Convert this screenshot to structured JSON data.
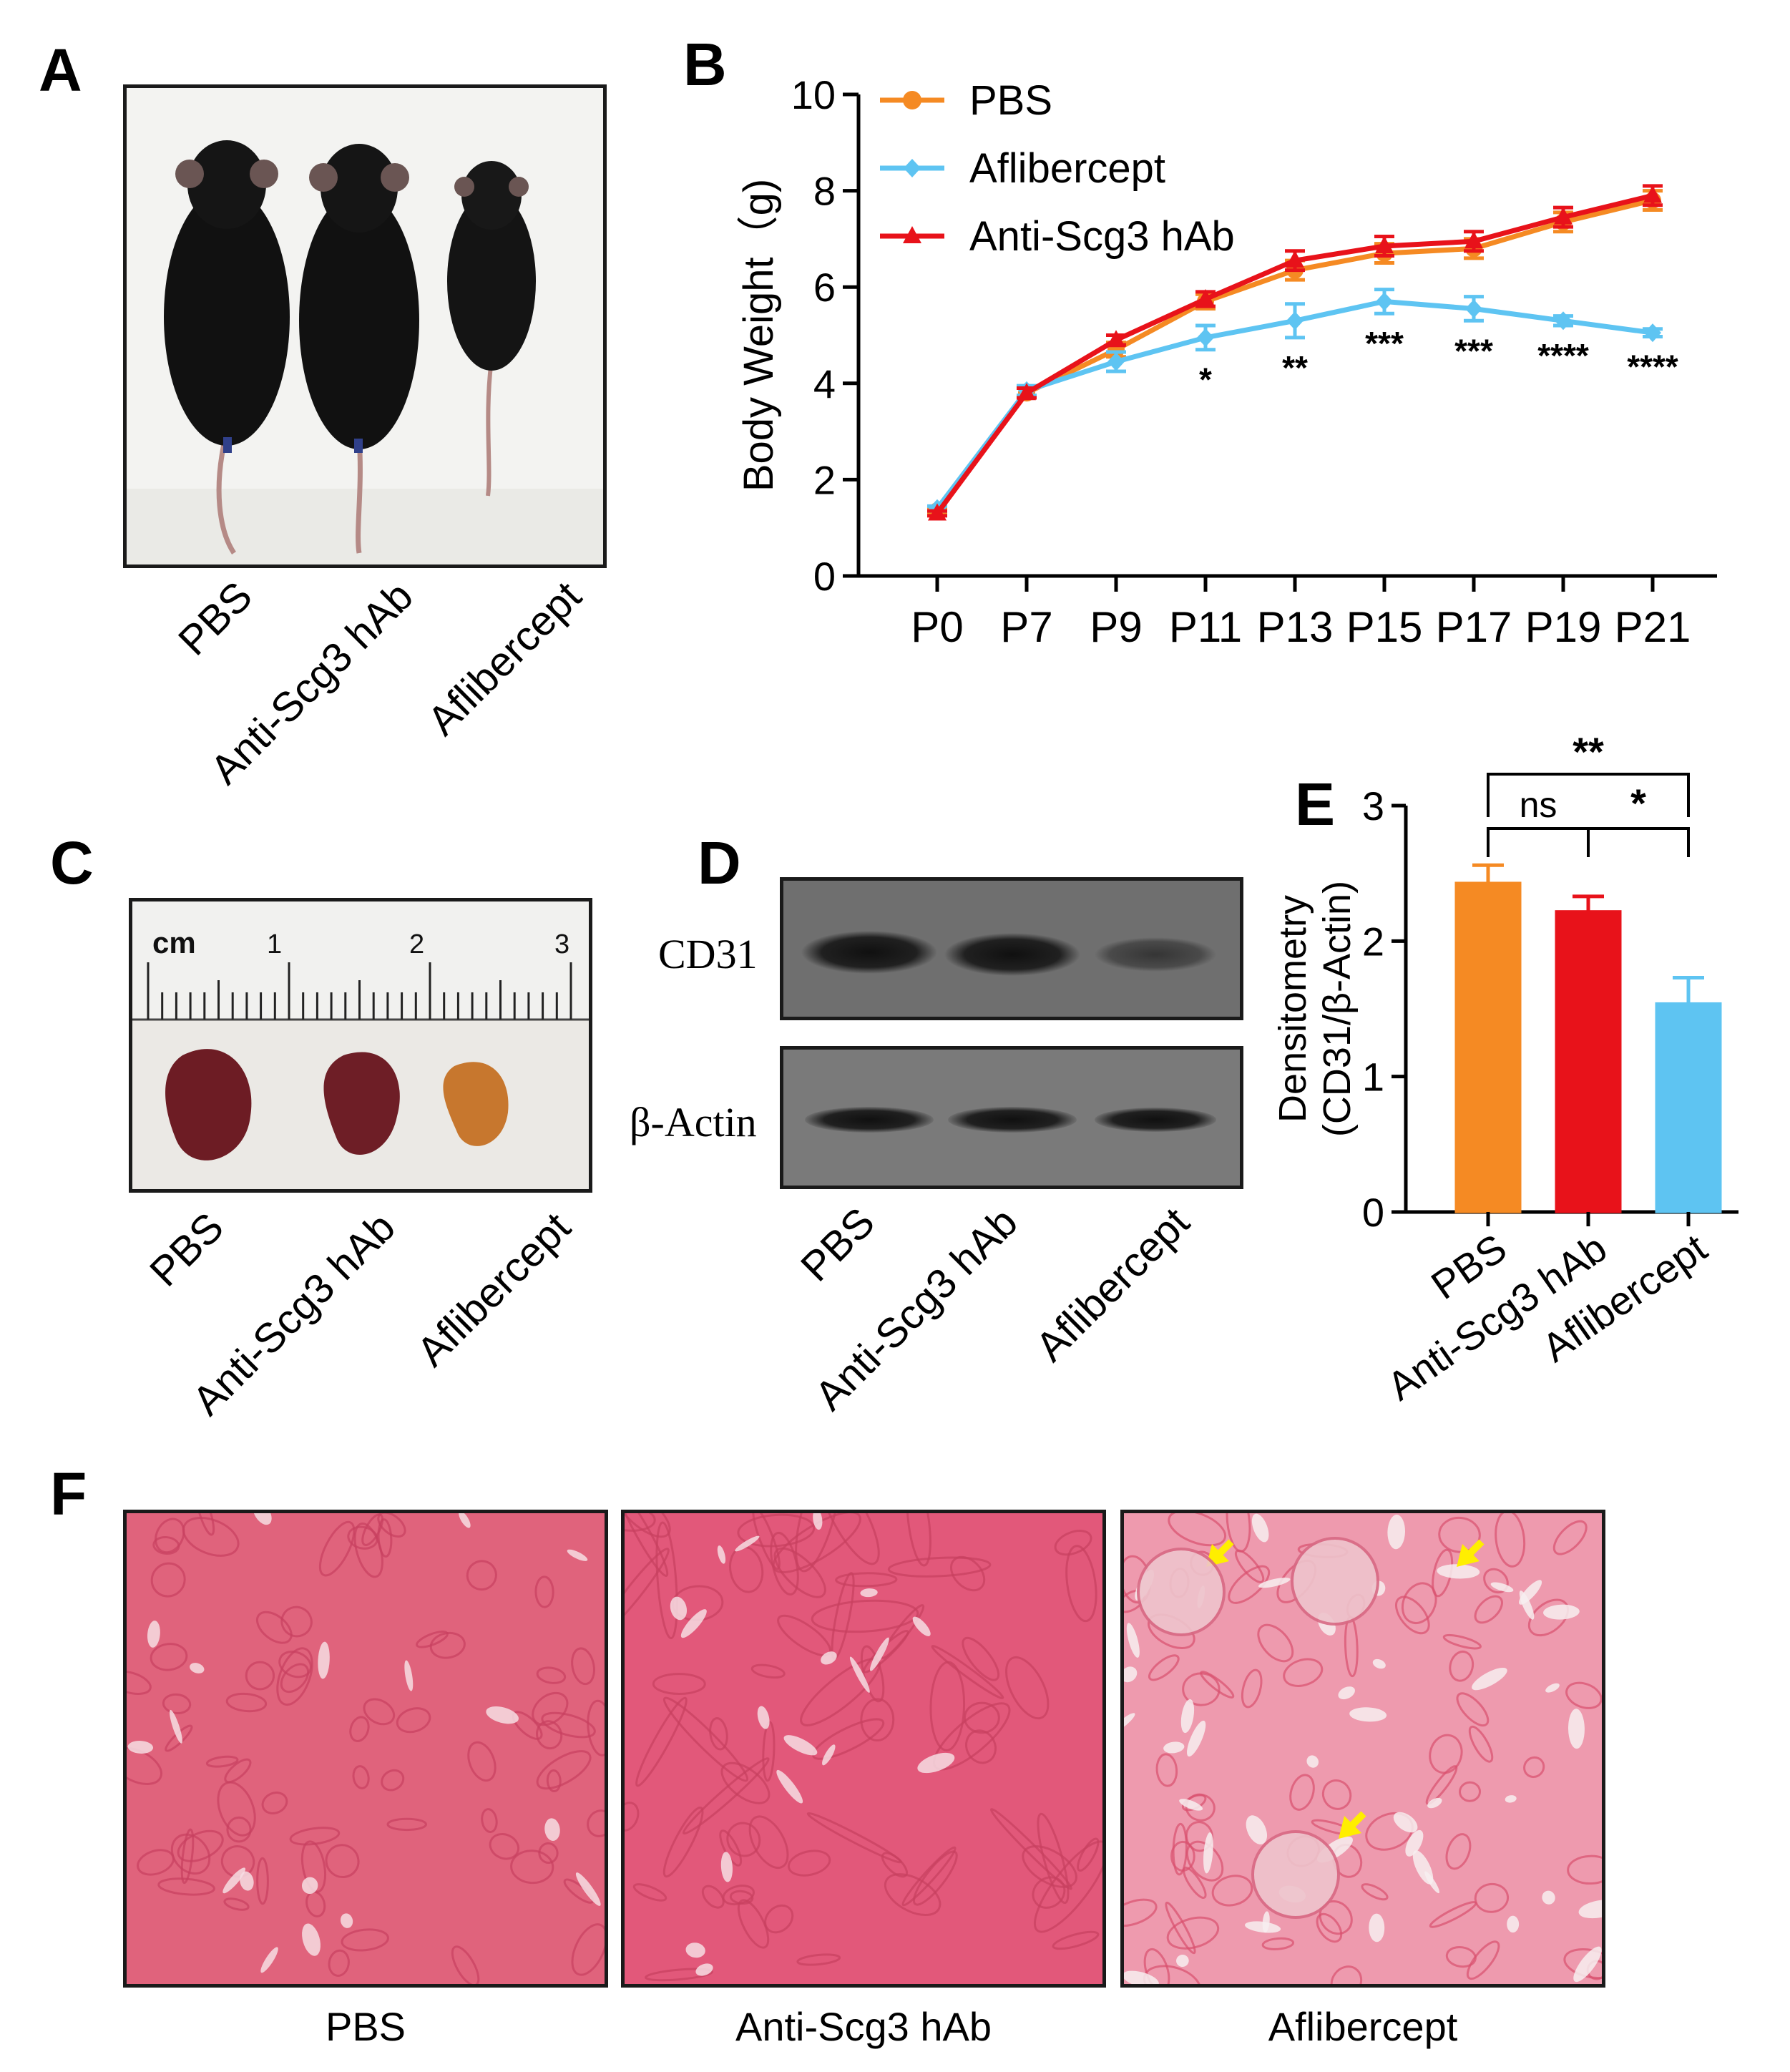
{
  "panels": {
    "a": {
      "letter": "A",
      "labels": [
        "PBS",
        "Anti-Scg3 hAb",
        "Aflibercept"
      ]
    },
    "b": {
      "letter": "B"
    },
    "c": {
      "letter": "C",
      "ruler": {
        "unit": "cm",
        "marks": [
          "1",
          "2",
          "3"
        ]
      },
      "labels": [
        "PBS",
        "Anti-Scg3 hAb",
        "Aflibercept"
      ]
    },
    "d": {
      "letter": "D",
      "bands": [
        "CD31",
        "β-Actin"
      ],
      "labels": [
        "PBS",
        "Anti-Scg3 hAb",
        "Aflibercept"
      ]
    },
    "e": {
      "letter": "E"
    },
    "f": {
      "letter": "F",
      "captions": [
        "PBS",
        "Anti-Scg3 hAb",
        "Aflibercept"
      ]
    }
  },
  "colors": {
    "pbs": "#f58a23",
    "anti_scg3": "#e8121a",
    "aflibercept": "#5ec4f2",
    "he_stain": "#e5637f",
    "arrow": "#ffee00"
  },
  "chart_data": [
    {
      "type": "line",
      "panel": "B",
      "categories": [
        "P0",
        "P7",
        "P9",
        "P11",
        "P13",
        "P15",
        "P17",
        "P19",
        "P21"
      ],
      "ylabel": "Body Weight（g)",
      "ylim": [
        0,
        10
      ],
      "yticks": [
        "0",
        "2",
        "4",
        "6",
        "8",
        "10"
      ],
      "legend_position": "top-left",
      "series": [
        {
          "name": "PBS",
          "color": "#f58a23",
          "marker": "circle",
          "values": [
            1.35,
            3.8,
            4.7,
            5.7,
            6.35,
            6.7,
            6.8,
            7.35,
            7.8
          ],
          "errors": [
            0.05,
            0.1,
            0.15,
            0.15,
            0.2,
            0.2,
            0.2,
            0.2,
            0.2
          ]
        },
        {
          "name": "Aflibercept",
          "color": "#5ec4f2",
          "marker": "diamond",
          "values": [
            1.4,
            3.85,
            4.45,
            4.95,
            5.3,
            5.7,
            5.55,
            5.3,
            5.05
          ],
          "errors": [
            0.05,
            0.1,
            0.2,
            0.25,
            0.35,
            0.25,
            0.25,
            0.1,
            0.08
          ]
        },
        {
          "name": "Anti-Scg3 hAb",
          "color": "#e8121a",
          "marker": "triangle",
          "values": [
            1.3,
            3.8,
            4.9,
            5.75,
            6.55,
            6.85,
            6.95,
            7.45,
            7.9
          ],
          "errors": [
            0.05,
            0.1,
            0.1,
            0.15,
            0.2,
            0.2,
            0.2,
            0.2,
            0.2
          ]
        }
      ],
      "significance": [
        {
          "category": "P11",
          "label": "*"
        },
        {
          "category": "P13",
          "label": "**"
        },
        {
          "category": "P15",
          "label": "***"
        },
        {
          "category": "P17",
          "label": "***"
        },
        {
          "category": "P19",
          "label": "****"
        },
        {
          "category": "P21",
          "label": "****"
        }
      ]
    },
    {
      "type": "bar",
      "panel": "E",
      "categories": [
        "PBS",
        "Anti-Scg3 hAb",
        "Aflibercept"
      ],
      "values": [
        2.43,
        2.22,
        1.54
      ],
      "errors": [
        0.13,
        0.11,
        0.19
      ],
      "colors": [
        "#f58a23",
        "#e8121a",
        "#5ec4f2"
      ],
      "ylabel_lines": [
        "Densitometry",
        "(CD31/β-Actin)"
      ],
      "ylim": [
        0,
        3
      ],
      "yticks": [
        "0",
        "1",
        "2",
        "3"
      ],
      "comparisons": [
        {
          "from": 0,
          "to": 1,
          "label": "ns"
        },
        {
          "from": 1,
          "to": 2,
          "label": "*"
        },
        {
          "from": 0,
          "to": 2,
          "label": "**"
        }
      ]
    }
  ]
}
